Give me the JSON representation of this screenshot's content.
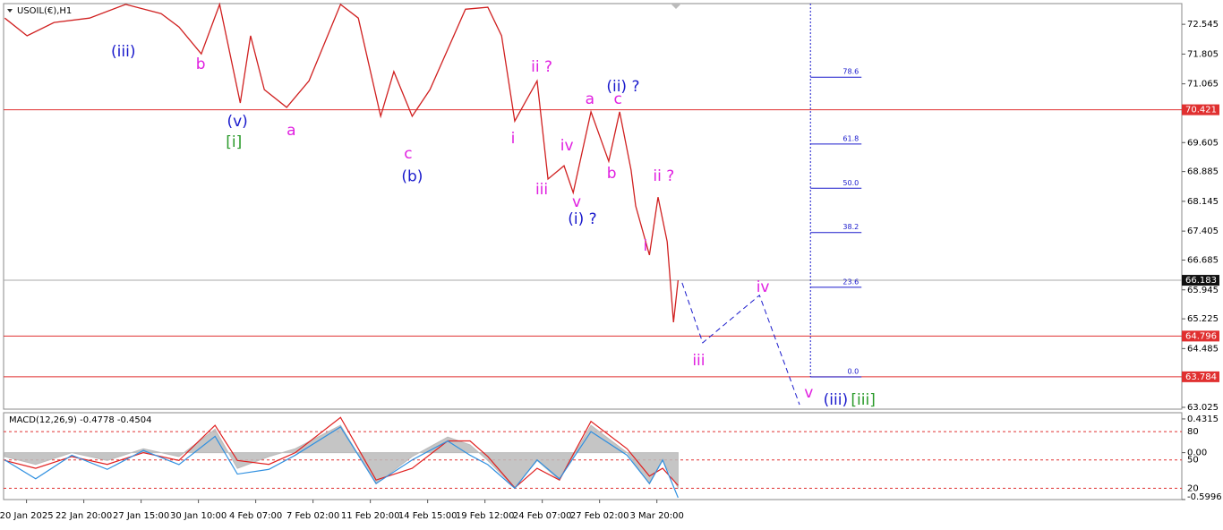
{
  "chart_data": [
    {
      "type": "line",
      "title": "USOIL(€),H1",
      "xlim": [
        0,
        20.56
      ],
      "ylim": [
        62.98,
        73.06
      ],
      "xticks": [
        {
          "value": 0.4,
          "label": "20 Jan 2025"
        },
        {
          "value": 1.4,
          "label": "22 Jan 20:00"
        },
        {
          "value": 2.4,
          "label": "27 Jan 15:00"
        },
        {
          "value": 3.4,
          "label": "30 Jan 10:00"
        },
        {
          "value": 4.4,
          "label": "4 Feb 07:00"
        },
        {
          "value": 5.4,
          "label": "7 Feb 02:00"
        },
        {
          "value": 6.4,
          "label": "11 Feb 20:00"
        },
        {
          "value": 7.4,
          "label": "14 Feb 15:00"
        },
        {
          "value": 8.4,
          "label": "19 Feb 12:00"
        },
        {
          "value": 9.4,
          "label": "24 Feb 07:00"
        },
        {
          "value": 10.4,
          "label": "27 Feb 02:00"
        },
        {
          "value": 11.4,
          "label": "3 Mar 20:00"
        }
      ],
      "yticks": [
        72.545,
        71.805,
        71.065,
        69.605,
        68.885,
        68.145,
        67.405,
        66.685,
        65.945,
        65.225,
        64.485,
        63.025
      ],
      "series": [
        {
          "color": "#d02020",
          "x": [
            0.02,
            0.41,
            0.88,
            1.5,
            2.13,
            2.75,
            3.06,
            3.45,
            3.77,
            4.13,
            4.31,
            4.55,
            4.94,
            5.33,
            5.88,
            6.19,
            6.58,
            6.81,
            7.13,
            7.44,
            7.75,
            8.06,
            8.45,
            8.69,
            8.92,
            9.31,
            9.5,
            9.78,
            9.94,
            10.25,
            10.56,
            10.75,
            10.95,
            11.03,
            11.27,
            11.42,
            11.58,
            11.69,
            11.77
          ],
          "values": [
            72.7,
            72.26,
            72.59,
            72.7,
            73.04,
            72.81,
            72.48,
            71.81,
            73.04,
            70.59,
            72.26,
            70.92,
            70.48,
            71.14,
            73.04,
            72.7,
            70.26,
            71.37,
            70.26,
            70.92,
            71.92,
            72.92,
            72.97,
            72.26,
            70.14,
            71.14,
            68.7,
            69.03,
            68.36,
            70.37,
            69.14,
            70.37,
            68.92,
            68.03,
            66.81,
            68.25,
            67.14,
            65.14,
            66.183
          ]
        }
      ],
      "levels": [
        {
          "value": 70.421,
          "color": "#e03030"
        },
        {
          "value": 66.183,
          "color": "#aaaaaa"
        },
        {
          "value": 64.796,
          "color": "#e03030"
        },
        {
          "value": 63.784,
          "color": "#e03030"
        }
      ],
      "projection": {
        "color": "#1a1acc",
        "x": [
          11.84,
          12.2,
          13.19,
          13.89
        ],
        "values": [
          66.12,
          64.63,
          65.81,
          63.09
        ]
      },
      "fib": {
        "x": 14.08,
        "color": "#1a1acc",
        "levels": [
          {
            "label": "78.6",
            "value": 71.23
          },
          {
            "label": "61.8",
            "value": 69.57
          },
          {
            "label": "50.0",
            "value": 68.47
          },
          {
            "label": "38.2",
            "value": 67.37
          },
          {
            "label": "23.6",
            "value": 66.01
          },
          {
            "label": "0.0",
            "value": 63.78
          }
        ]
      },
      "annotations": [
        {
          "text": "(iii)",
          "color": "#1a1acc",
          "x": 2.09,
          "y": 71.86
        },
        {
          "text": "b",
          "color": "#e020e0",
          "x": 3.44,
          "y": 71.55
        },
        {
          "text": "(v)",
          "color": "#1a1acc",
          "x": 4.08,
          "y": 70.12
        },
        {
          "text": "[i]",
          "color": "#2a9a2a",
          "x": 4.02,
          "y": 69.61
        },
        {
          "text": "a",
          "color": "#e020e0",
          "x": 5.02,
          "y": 69.9
        },
        {
          "text": "c",
          "color": "#e020e0",
          "x": 7.06,
          "y": 69.32
        },
        {
          "text": "(b)",
          "color": "#1a1acc",
          "x": 7.13,
          "y": 68.75
        },
        {
          "text": "ii ?",
          "color": "#e020e0",
          "x": 9.39,
          "y": 71.48
        },
        {
          "text": "(ii) ?",
          "color": "#1a1acc",
          "x": 10.81,
          "y": 70.99
        },
        {
          "text": "a",
          "color": "#e020e0",
          "x": 10.23,
          "y": 70.68
        },
        {
          "text": "c",
          "color": "#e020e0",
          "x": 10.72,
          "y": 70.68
        },
        {
          "text": "i",
          "color": "#e020e0",
          "x": 8.89,
          "y": 69.7
        },
        {
          "text": "iv",
          "color": "#e020e0",
          "x": 9.83,
          "y": 69.52
        },
        {
          "text": "iii",
          "color": "#e020e0",
          "x": 9.39,
          "y": 68.43
        },
        {
          "text": "v",
          "color": "#e020e0",
          "x": 10.0,
          "y": 68.12
        },
        {
          "text": "(i) ?",
          "color": "#1a1acc",
          "x": 10.1,
          "y": 67.7
        },
        {
          "text": "b",
          "color": "#e020e0",
          "x": 10.61,
          "y": 68.83
        },
        {
          "text": "ii ?",
          "color": "#e020e0",
          "x": 11.52,
          "y": 68.76
        },
        {
          "text": "i",
          "color": "#e020e0",
          "x": 11.2,
          "y": 67.03
        },
        {
          "text": "iii",
          "color": "#e020e0",
          "x": 12.13,
          "y": 64.18
        },
        {
          "text": "iv",
          "color": "#e020e0",
          "x": 13.25,
          "y": 66.01
        },
        {
          "text": "v",
          "color": "#e020e0",
          "x": 14.05,
          "y": 63.38
        },
        {
          "text": "(iii)",
          "color": "#1a1acc",
          "x": 14.52,
          "y": 63.2
        },
        {
          "text": "[iii]",
          "color": "#2a9a2a",
          "x": 15.0,
          "y": 63.2
        }
      ]
    },
    {
      "type": "macd",
      "title": "MACD(12,26,9) -0.4778 -0.4504",
      "xlim": [
        0,
        20.56
      ],
      "ylim": [
        -0.6,
        0.511
      ],
      "y2lim": [
        8,
        100
      ],
      "yticks": [
        0.4315,
        {
          "value": 0,
          "label": "0.00"
        },
        -0.5996
      ],
      "y2ticks": [
        80,
        50,
        20
      ],
      "x": [
        0.02,
        0.56,
        1.19,
        1.81,
        2.44,
        3.06,
        3.69,
        4.08,
        4.63,
        5.09,
        5.88,
        6.5,
        7.13,
        7.75,
        8.14,
        8.45,
        8.92,
        9.31,
        9.7,
        10.25,
        10.88,
        11.27,
        11.5,
        11.77
      ],
      "series": [
        {
          "color": "#bbbbbb",
          "values": [
            -0.05,
            -0.15,
            0.0,
            -0.1,
            0.05,
            -0.05,
            0.3,
            -0.2,
            -0.05,
            0.05,
            0.35,
            -0.4,
            -0.05,
            0.2,
            0.1,
            -0.1,
            -0.45,
            -0.1,
            -0.35,
            0.35,
            0.0,
            -0.4,
            -0.1,
            -0.45
          ]
        },
        {
          "color": "#e02020",
          "values": [
            -0.1,
            -0.2,
            -0.05,
            -0.15,
            0.0,
            -0.1,
            0.35,
            -0.1,
            -0.15,
            0.0,
            0.45,
            -0.35,
            -0.2,
            0.15,
            0.15,
            -0.05,
            -0.45,
            -0.2,
            -0.35,
            0.4,
            0.05,
            -0.3,
            -0.2,
            -0.42
          ]
        },
        {
          "color": "#3090e0",
          "axis": "y2",
          "values": [
            50,
            30,
            55,
            40,
            60,
            45,
            75,
            35,
            40,
            55,
            85,
            25,
            50,
            70,
            55,
            45,
            20,
            50,
            30,
            80,
            55,
            25,
            50,
            10
          ]
        }
      ]
    }
  ]
}
